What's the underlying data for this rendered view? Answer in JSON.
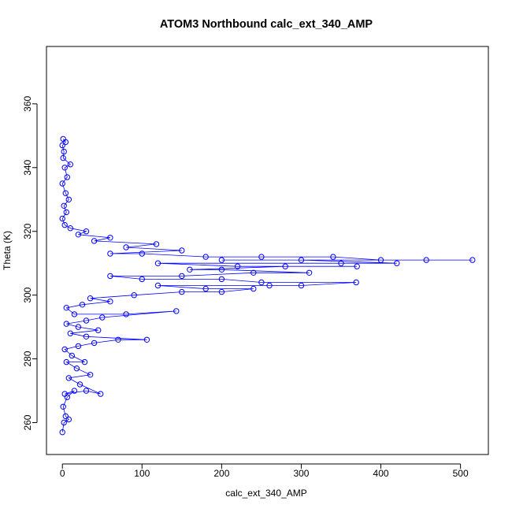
{
  "chart_data": {
    "type": "scatter",
    "title": "ATOM3 Northbound calc_ext_340_AMP",
    "xlabel": "calc_ext_340_AMP",
    "ylabel": "Theta (K)",
    "xlim": [
      -20,
      535
    ],
    "ylim": [
      250,
      378
    ],
    "xticks": [
      0,
      100,
      200,
      300,
      400,
      500
    ],
    "yticks": [
      260,
      280,
      300,
      320,
      340,
      360
    ],
    "grid": false,
    "marker": "open-circle",
    "connected": true,
    "series_color": "#0000ff",
    "series": [
      {
        "values": [
          [
            0,
            257
          ],
          [
            2,
            260
          ],
          [
            8,
            261
          ],
          [
            4,
            262
          ],
          [
            1,
            265
          ],
          [
            6,
            268
          ],
          [
            15,
            270
          ],
          [
            3,
            269
          ],
          [
            30,
            270
          ],
          [
            48,
            269
          ],
          [
            22,
            272
          ],
          [
            8,
            274
          ],
          [
            35,
            275
          ],
          [
            18,
            277
          ],
          [
            5,
            279
          ],
          [
            28,
            279
          ],
          [
            12,
            281
          ],
          [
            3,
            283
          ],
          [
            20,
            284
          ],
          [
            40,
            285
          ],
          [
            70,
            286
          ],
          [
            106,
            286
          ],
          [
            30,
            287
          ],
          [
            10,
            288
          ],
          [
            45,
            289
          ],
          [
            20,
            290
          ],
          [
            5,
            291
          ],
          [
            30,
            292
          ],
          [
            50,
            293
          ],
          [
            143,
            295
          ],
          [
            80,
            294
          ],
          [
            15,
            294
          ],
          [
            5,
            296
          ],
          [
            25,
            297
          ],
          [
            60,
            298
          ],
          [
            35,
            299
          ],
          [
            90,
            300
          ],
          [
            150,
            301
          ],
          [
            200,
            301
          ],
          [
            240,
            302
          ],
          [
            180,
            302
          ],
          [
            120,
            303
          ],
          [
            260,
            303
          ],
          [
            300,
            303
          ],
          [
            369,
            304
          ],
          [
            250,
            304
          ],
          [
            200,
            305
          ],
          [
            100,
            305
          ],
          [
            60,
            306
          ],
          [
            150,
            306
          ],
          [
            240,
            307
          ],
          [
            310,
            307
          ],
          [
            200,
            308
          ],
          [
            160,
            308
          ],
          [
            280,
            309
          ],
          [
            370,
            309
          ],
          [
            220,
            309
          ],
          [
            120,
            310
          ],
          [
            350,
            310
          ],
          [
            420,
            310
          ],
          [
            300,
            311
          ],
          [
            200,
            311
          ],
          [
            457,
            311
          ],
          [
            515,
            311
          ],
          [
            400,
            311
          ],
          [
            340,
            312
          ],
          [
            250,
            312
          ],
          [
            180,
            312
          ],
          [
            100,
            313
          ],
          [
            60,
            313
          ],
          [
            150,
            314
          ],
          [
            80,
            315
          ],
          [
            118,
            316
          ],
          [
            40,
            317
          ],
          [
            60,
            318
          ],
          [
            20,
            319
          ],
          [
            30,
            320
          ],
          [
            10,
            321
          ],
          [
            3,
            322
          ],
          [
            0,
            324
          ],
          [
            5,
            326
          ],
          [
            2,
            328
          ],
          [
            8,
            330
          ],
          [
            4,
            332
          ],
          [
            0,
            335
          ],
          [
            6,
            337
          ],
          [
            3,
            340
          ],
          [
            10,
            341
          ],
          [
            1,
            343
          ],
          [
            2,
            345
          ],
          [
            0,
            347
          ],
          [
            4,
            348
          ],
          [
            1,
            349
          ]
        ]
      }
    ]
  }
}
